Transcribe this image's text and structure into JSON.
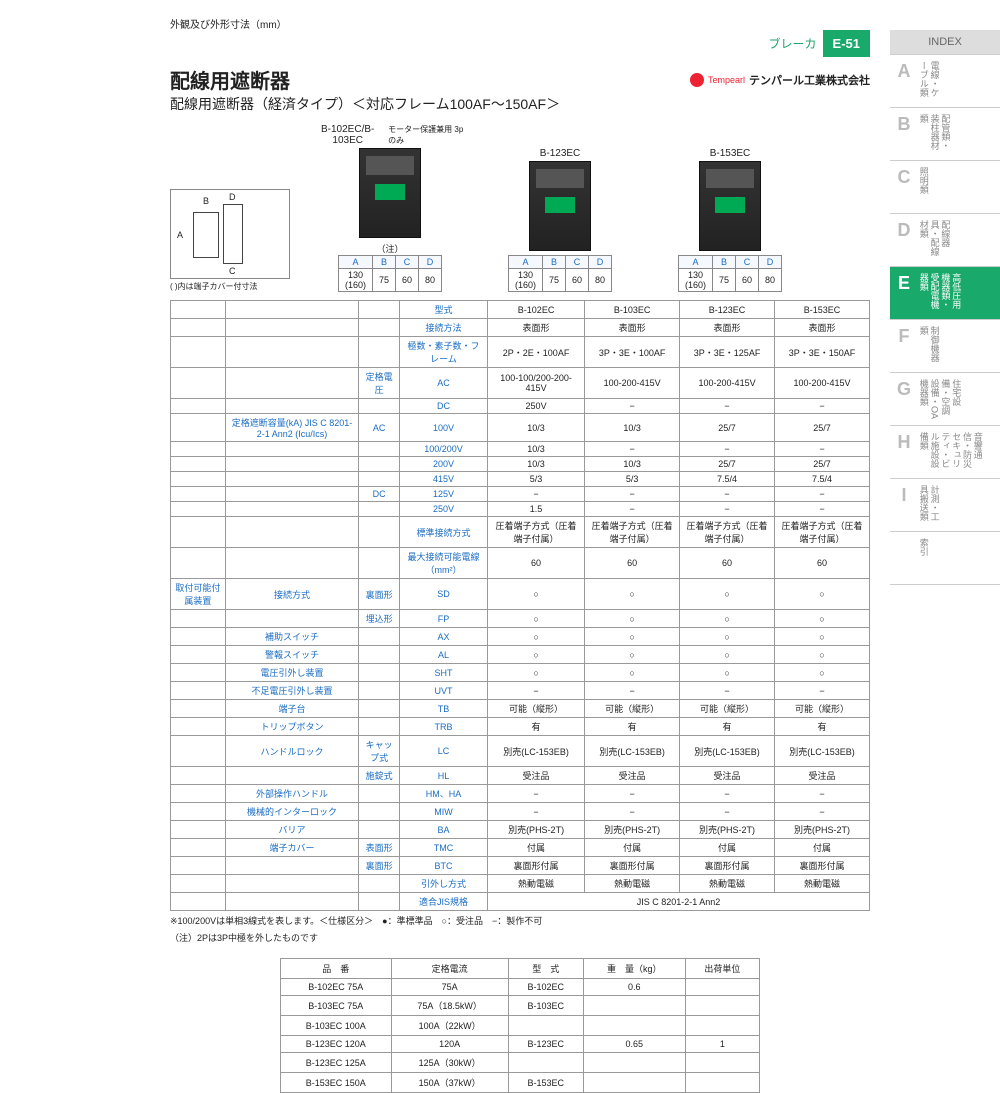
{
  "header": {
    "crumb": "ブレーカ",
    "pageno": "E-51",
    "title": "配線用遮断器",
    "subtitle": "配線用遮断器（経済タイプ）＜対応フレーム100AF～150AF＞",
    "company": "テンパール工業株式会社",
    "brand": "Tempearl"
  },
  "dim_box": {
    "title": "外観及び外形寸法（mm）",
    "labels": {
      "B": "B",
      "C": "C",
      "D": "D",
      "A": "A"
    },
    "note": "( )内は端子カバー付寸法"
  },
  "products": [
    {
      "name": "B-102EC/B-103EC",
      "sub": "モーター保護兼用 3pのみ",
      "note": "（注）",
      "dims": {
        "A": "130",
        "A2": "(160)",
        "B": "75",
        "C": "60",
        "D": "80"
      }
    },
    {
      "name": "B-123EC",
      "sub": "",
      "dims": {
        "A": "130",
        "A2": "(160)",
        "B": "75",
        "C": "60",
        "D": "80"
      }
    },
    {
      "name": "B-153EC",
      "sub": "",
      "dims": {
        "A": "130",
        "A2": "(160)",
        "B": "75",
        "C": "60",
        "D": "80"
      }
    }
  ],
  "spec": {
    "col_models": [
      "B-102EC",
      "B-103EC",
      "B-123EC",
      "B-153EC"
    ],
    "rows": [
      {
        "h": [
          "型式"
        ],
        "v": [
          "B-102EC",
          "B-103EC",
          "B-123EC",
          "B-153EC"
        ]
      },
      {
        "h": [
          "接続方法"
        ],
        "v": [
          "表面形",
          "表面形",
          "表面形",
          "表面形"
        ]
      },
      {
        "h": [
          "極数・素子数・フレーム"
        ],
        "v": [
          "2P・2E・100AF",
          "3P・3E・100AF",
          "3P・3E・125AF",
          "3P・3E・150AF"
        ]
      },
      {
        "h": [
          "定格電圧",
          "AC"
        ],
        "v": [
          "100-100/200-200-415V",
          "100-200-415V",
          "100-200-415V",
          "100-200-415V"
        ]
      },
      {
        "h": [
          "",
          "DC"
        ],
        "v": [
          "250V",
          "−",
          "−",
          "−"
        ]
      },
      {
        "h": [
          "定格遮断容量(kA) JIS C 8201-2-1 Ann2 (Icu/Ics)",
          "AC",
          "100V"
        ],
        "v": [
          "10/3",
          "10/3",
          "25/7",
          "25/7"
        ]
      },
      {
        "h": [
          "",
          "",
          "100/200V"
        ],
        "v": [
          "10/3",
          "−",
          "−",
          "−"
        ]
      },
      {
        "h": [
          "",
          "",
          "200V"
        ],
        "v": [
          "10/3",
          "10/3",
          "25/7",
          "25/7"
        ]
      },
      {
        "h": [
          "",
          "",
          "415V"
        ],
        "v": [
          "5/3",
          "5/3",
          "7.5/4",
          "7.5/4"
        ]
      },
      {
        "h": [
          "",
          "DC",
          "125V"
        ],
        "v": [
          "−",
          "−",
          "−",
          "−"
        ]
      },
      {
        "h": [
          "",
          "",
          "250V"
        ],
        "v": [
          "1.5",
          "−",
          "−",
          "−"
        ]
      },
      {
        "h": [
          "標準接続方式"
        ],
        "v": [
          "圧着端子方式（圧着端子付属）",
          "圧着端子方式（圧着端子付属）",
          "圧着端子方式（圧着端子付属）",
          "圧着端子方式（圧着端子付属）"
        ]
      },
      {
        "h": [
          "最大接続可能電線（mm²）"
        ],
        "v": [
          "60",
          "60",
          "60",
          "60"
        ]
      },
      {
        "h": [
          "取付可能付属装置",
          "接続方式",
          "裏面形",
          "SD"
        ],
        "v": [
          "○",
          "○",
          "○",
          "○"
        ]
      },
      {
        "h": [
          "",
          "",
          "埋込形",
          "FP"
        ],
        "v": [
          "○",
          "○",
          "○",
          "○"
        ]
      },
      {
        "h": [
          "",
          "補助スイッチ",
          "",
          "AX"
        ],
        "v": [
          "○",
          "○",
          "○",
          "○"
        ]
      },
      {
        "h": [
          "",
          "警報スイッチ",
          "",
          "AL"
        ],
        "v": [
          "○",
          "○",
          "○",
          "○"
        ]
      },
      {
        "h": [
          "",
          "電圧引外し装置",
          "",
          "SHT"
        ],
        "v": [
          "○",
          "○",
          "○",
          "○"
        ]
      },
      {
        "h": [
          "",
          "不足電圧引外し装置",
          "",
          "UVT"
        ],
        "v": [
          "−",
          "−",
          "−",
          "−"
        ]
      },
      {
        "h": [
          "",
          "端子台",
          "",
          "TB"
        ],
        "v": [
          "可能（縦形）",
          "可能（縦形）",
          "可能（縦形）",
          "可能（縦形）"
        ]
      },
      {
        "h": [
          "",
          "トリップボタン",
          "",
          "TRB"
        ],
        "v": [
          "有",
          "有",
          "有",
          "有"
        ]
      },
      {
        "h": [
          "",
          "ハンドルロック",
          "キャップ式",
          "LC"
        ],
        "v": [
          "別売(LC-153EB)",
          "別売(LC-153EB)",
          "別売(LC-153EB)",
          "別売(LC-153EB)"
        ]
      },
      {
        "h": [
          "",
          "",
          "施錠式",
          "HL"
        ],
        "v": [
          "受注品",
          "受注品",
          "受注品",
          "受注品"
        ]
      },
      {
        "h": [
          "",
          "外部操作ハンドル",
          "",
          "HM、HA"
        ],
        "v": [
          "−",
          "−",
          "−",
          "−"
        ]
      },
      {
        "h": [
          "",
          "機械的インターロック",
          "",
          "MIW"
        ],
        "v": [
          "−",
          "−",
          "−",
          "−"
        ]
      },
      {
        "h": [
          "",
          "バリア",
          "",
          "BA"
        ],
        "v": [
          "別売(PHS-2T)",
          "別売(PHS-2T)",
          "別売(PHS-2T)",
          "別売(PHS-2T)"
        ]
      },
      {
        "h": [
          "",
          "端子カバー",
          "表面形",
          "TMC"
        ],
        "v": [
          "付属",
          "付属",
          "付属",
          "付属"
        ]
      },
      {
        "h": [
          "",
          "",
          "裏面形",
          "BTC"
        ],
        "v": [
          "裏面形付属",
          "裏面形付属",
          "裏面形付属",
          "裏面形付属"
        ]
      },
      {
        "h": [
          "引外し方式"
        ],
        "v": [
          "熱動電磁",
          "熱動電磁",
          "熱動電磁",
          "熱動電磁"
        ]
      },
      {
        "h": [
          "適合JIS規格"
        ],
        "v": [
          "JIS C 8201-2-1 Ann2",
          "",
          "",
          ""
        ],
        "span": 4
      }
    ],
    "footnote1": "※100/200Vは単相3線式を表します。＜仕様区分＞　●：準標準品　○：受注品　−：製作不可",
    "footnote2": "（注）2Pは3P中極を外したものです"
  },
  "parts": {
    "head": [
      "品　番",
      "定格電流",
      "型　式",
      "重　量（kg）",
      "出荷単位"
    ],
    "rows": [
      [
        "B-102EC 75A",
        "75A",
        "B-102EC",
        "0.6",
        ""
      ],
      [
        "B-103EC 75A",
        "75A（18.5kW）",
        "B-103EC",
        "",
        ""
      ],
      [
        "B-103EC 100A",
        "100A（22kW）",
        "",
        "",
        ""
      ],
      [
        "B-123EC 120A",
        "120A",
        "B-123EC",
        "0.65",
        "1"
      ],
      [
        "B-123EC 125A",
        "125A（30kW）",
        "",
        "",
        ""
      ],
      [
        "B-153EC 150A",
        "150A（37kW）",
        "B-153EC",
        "",
        ""
      ]
    ]
  },
  "index": {
    "title": "INDEX",
    "tabs": [
      {
        "k": "A",
        "t": "電線・ケーブル類"
      },
      {
        "k": "B",
        "t": "配管類・装柱器材類"
      },
      {
        "k": "C",
        "t": "照明類"
      },
      {
        "k": "D",
        "t": "配線器具・配線材類"
      },
      {
        "k": "E",
        "t": "高低圧用機器類・受配電機器類",
        "active": true
      },
      {
        "k": "F",
        "t": "制御機器類"
      },
      {
        "k": "G",
        "t": "住宅設備・空調設備・OA機器類"
      },
      {
        "k": "H",
        "t": "音響通信・防災セキュリティ・ビル施設設備類"
      },
      {
        "k": "I",
        "t": "計測・工具搬送類"
      },
      {
        "k": "",
        "t": "索引"
      }
    ]
  }
}
